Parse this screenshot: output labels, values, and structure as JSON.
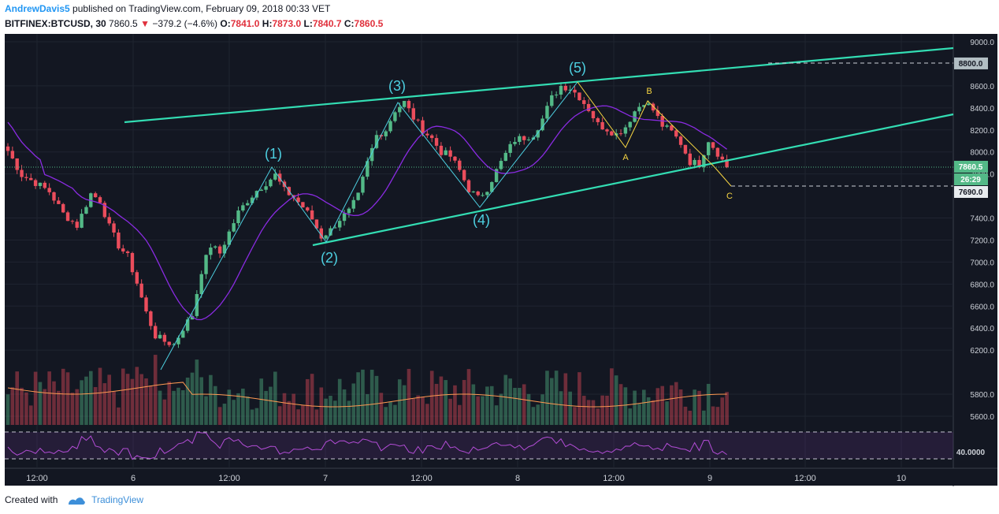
{
  "header": {
    "author": "AndrewDavis5",
    "published_text": "published on TradingView.com, February 09, 2018 00:33 VET",
    "symbol": "BITFINEX:BTCUSD, 30",
    "last_price": "7860.5",
    "change_arrow": "▼",
    "change": "−379.2 (−4.6%)",
    "o_label": "O:",
    "o_value": "7841.0",
    "h_label": "H:",
    "h_value": "7873.0",
    "l_label": "L:",
    "l_value": "7840.7",
    "c_label": "C:",
    "c_value": "7860.5"
  },
  "footer": {
    "created_with": "Created with",
    "brand": "TradingView"
  },
  "colors": {
    "background": "#131722",
    "up": "#53b987",
    "down": "#eb4d5c",
    "channel": "#33ddb3",
    "wave_impulse": "#4dd0e1",
    "wave_correction": "#f5d442",
    "ma": "#8a2be2",
    "volume_ma": "#ff9a52",
    "rsi": "#b34dd6"
  },
  "chart_data": {
    "type": "candlestick",
    "title": "BITFINEX:BTCUSD, 30",
    "y_ticks": [
      "9000.0",
      "8800.0",
      "8600.0",
      "8400.0",
      "8200.0",
      "8000.0",
      "7860.5",
      "7800.0",
      "7690.0",
      "7400.0",
      "7200.0",
      "7000.0",
      "6800.0",
      "6600.0",
      "6400.0",
      "6200.0",
      "5800.0",
      "5600.0"
    ],
    "y_range": [
      5470,
      9040
    ],
    "x_ticks": [
      "12:00",
      "6",
      "12:00",
      "7",
      "12:00",
      "8",
      "12:00",
      "9",
      "12:00",
      "10"
    ],
    "last_price_label": "7860.5",
    "countdown_label": "26:29",
    "target_label": "7690.0",
    "target_level_label": "8800.0",
    "rsi_label": "40.0000",
    "price_path": [
      [
        0,
        8010
      ],
      [
        3,
        7790
      ],
      [
        6,
        7720
      ],
      [
        9,
        7640
      ],
      [
        12,
        7440
      ],
      [
        15,
        7330
      ],
      [
        18,
        7620
      ],
      [
        20,
        7560
      ],
      [
        22,
        7320
      ],
      [
        24,
        7150
      ],
      [
        26,
        7050
      ],
      [
        28,
        6810
      ],
      [
        30,
        6540
      ],
      [
        32,
        6330
      ],
      [
        34,
        6280
      ],
      [
        36,
        6250
      ],
      [
        38,
        6400
      ],
      [
        40,
        6520
      ],
      [
        42,
        6920
      ],
      [
        44,
        7150
      ],
      [
        46,
        7080
      ],
      [
        48,
        7270
      ],
      [
        50,
        7450
      ],
      [
        52,
        7560
      ],
      [
        54,
        7650
      ],
      [
        56,
        7720
      ],
      [
        58,
        7790
      ],
      [
        60,
        7650
      ],
      [
        62,
        7590
      ],
      [
        64,
        7500
      ],
      [
        66,
        7390
      ],
      [
        68,
        7230
      ],
      [
        70,
        7290
      ],
      [
        72,
        7390
      ],
      [
        74,
        7460
      ],
      [
        76,
        7600
      ],
      [
        78,
        7900
      ],
      [
        80,
        8150
      ],
      [
        82,
        8200
      ],
      [
        84,
        8380
      ],
      [
        86,
        8450
      ],
      [
        88,
        8310
      ],
      [
        90,
        8200
      ],
      [
        92,
        8120
      ],
      [
        94,
        8000
      ],
      [
        96,
        7960
      ],
      [
        98,
        7830
      ],
      [
        100,
        7660
      ],
      [
        102,
        7580
      ],
      [
        104,
        7670
      ],
      [
        106,
        7830
      ],
      [
        108,
        7980
      ],
      [
        110,
        8110
      ],
      [
        112,
        8130
      ],
      [
        114,
        8160
      ],
      [
        116,
        8300
      ],
      [
        118,
        8490
      ],
      [
        120,
        8600
      ],
      [
        122,
        8580
      ],
      [
        124,
        8500
      ],
      [
        126,
        8390
      ],
      [
        128,
        8250
      ],
      [
        130,
        8210
      ],
      [
        132,
        8160
      ],
      [
        134,
        8230
      ],
      [
        136,
        8370
      ],
      [
        138,
        8460
      ],
      [
        140,
        8380
      ],
      [
        142,
        8240
      ],
      [
        144,
        8180
      ],
      [
        146,
        8080
      ],
      [
        148,
        7910
      ],
      [
        150,
        7890
      ],
      [
        152,
        8110
      ],
      [
        154,
        7990
      ],
      [
        156,
        7860.5
      ]
    ],
    "wave_labels": [
      {
        "label": "(1)",
        "price": 7840
      },
      {
        "label": "(2)",
        "price": 7180
      },
      {
        "label": "(3)",
        "price": 8500
      },
      {
        "label": "(4)",
        "price": 7540
      },
      {
        "label": "(5)",
        "price": 8630
      },
      {
        "label": "A",
        "price": 8060
      },
      {
        "label": "B",
        "price": 8470
      },
      {
        "label": "C",
        "price": 7690
      }
    ]
  }
}
